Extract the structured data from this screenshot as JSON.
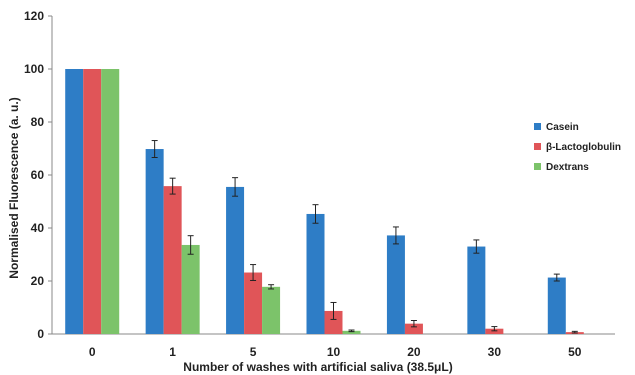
{
  "chart_data": {
    "type": "bar",
    "xlabel": "Number of washes with artificial saliva (38.5μL)",
    "ylabel": "Normalised Fluorescence (a. u.)",
    "ylim": [
      0,
      120
    ],
    "yticks": [
      0,
      20,
      40,
      60,
      80,
      100,
      120
    ],
    "grid": false,
    "legend_position": "right",
    "categories": [
      "0",
      "1",
      "5",
      "10",
      "20",
      "30",
      "50"
    ],
    "series": [
      {
        "name": "Casein",
        "color": "#2e7dc6",
        "values": [
          100,
          69.8,
          55.5,
          45.3,
          37.2,
          33.0,
          21.3
        ],
        "errors": [
          0,
          3.2,
          3.5,
          3.5,
          3.2,
          2.5,
          1.3
        ]
      },
      {
        "name": "β-Lactoglobulin",
        "color": "#e05558",
        "values": [
          100,
          55.8,
          23.2,
          8.7,
          3.9,
          2.0,
          0.7
        ],
        "errors": [
          0,
          3.0,
          3.0,
          3.2,
          1.2,
          0.8,
          0.3
        ]
      },
      {
        "name": "Dextrans",
        "color": "#7cc36a",
        "values": [
          100,
          33.6,
          17.8,
          1.2,
          null,
          null,
          null
        ],
        "errors": [
          0,
          3.5,
          0.8,
          0.3,
          null,
          null,
          null
        ]
      }
    ]
  }
}
